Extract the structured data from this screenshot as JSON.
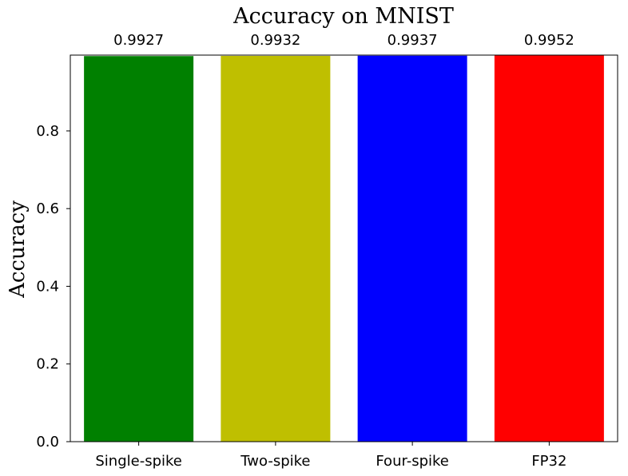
{
  "chart_data": {
    "type": "bar",
    "title": "Accuracy on MNIST",
    "xlabel": "",
    "ylabel": "Accuracy",
    "categories": [
      "Single-spike",
      "Two-spike",
      "Four-spike",
      "FP32"
    ],
    "values": [
      0.9927,
      0.9932,
      0.9937,
      0.9952
    ],
    "data_labels": [
      "0.9927",
      "0.9932",
      "0.9937",
      "0.9952"
    ],
    "colors": [
      "#008000",
      "#bfbf00",
      "#0000ff",
      "#ff0000"
    ],
    "ylim": [
      0,
      0.9952
    ],
    "yticks": [
      0.0,
      0.2,
      0.4,
      0.6,
      0.8
    ],
    "ytick_labels": [
      "0.0",
      "0.2",
      "0.4",
      "0.6",
      "0.8"
    ],
    "grid": false,
    "legend": "none"
  }
}
